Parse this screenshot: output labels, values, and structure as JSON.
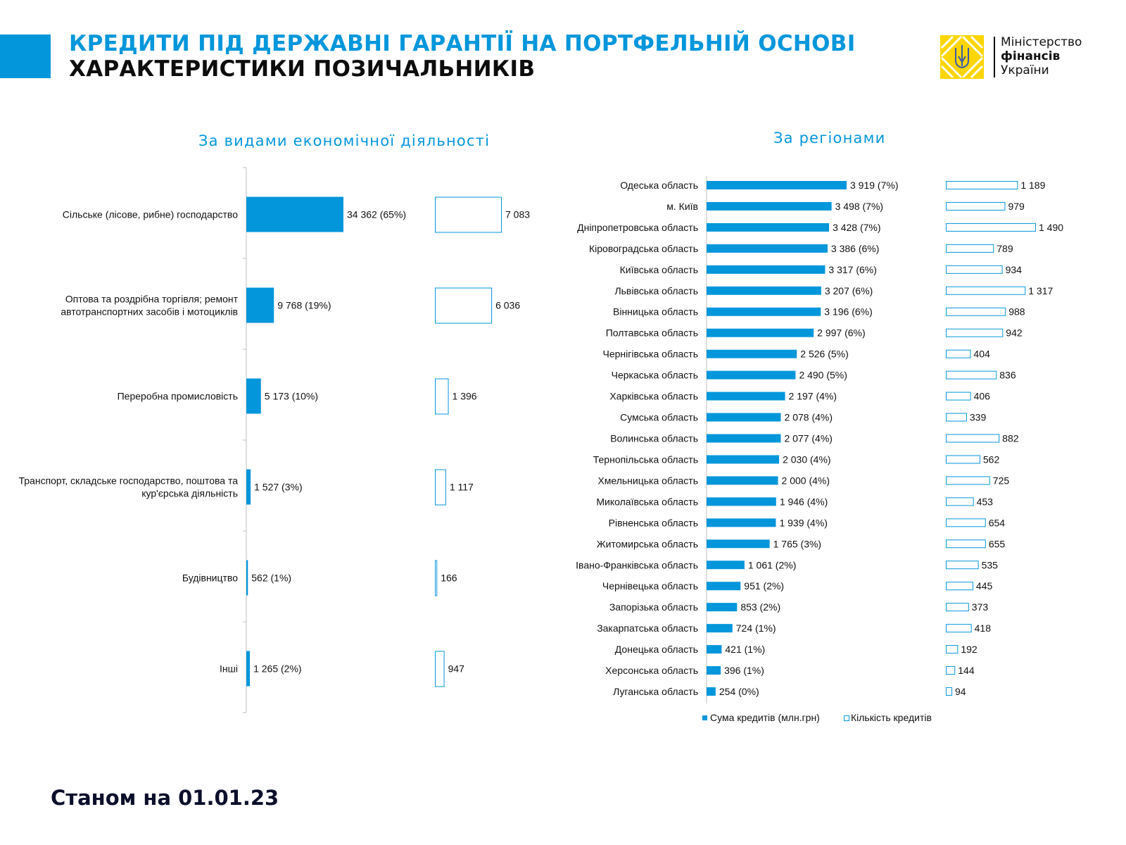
{
  "header": {
    "title_line1": "КРЕДИТИ ПІД ДЕРЖАВНІ ГАРАНТІЇ НА ПОРТФЕЛЬНІЙ ОСНОВІ",
    "title_line2": "ХАРАКТЕРИСТИКИ ПОЗИЧАЛЬНИКІВ",
    "accent_color": "#0396db"
  },
  "logo": {
    "line1": "Міністерство",
    "line2": "фінансів",
    "line3": "України",
    "icon": "trident-emblem-icon",
    "color": "#ffd500"
  },
  "footer": {
    "as_of": "Станом на 01.01.23"
  },
  "chart_data": [
    {
      "type": "bar",
      "orientation": "horizontal",
      "subtitle": "За видами економічної діяльності",
      "categories": [
        "Сільське (лісове, рибне) господарство",
        "Оптова та роздрібна торгівля; ремонт автотранспортних засобів і мотоциклів",
        "Переробна промисловість",
        "Транспорт, складське господарство, поштова та кур'єрська діяльність",
        "Будівництво",
        "Інші"
      ],
      "category_lines": [
        [
          "Сільське (лісове, рибне) господарство"
        ],
        [
          "Оптова та роздрібна торгівля; ремонт",
          "автотранспортних засобів і мотоциклів"
        ],
        [
          "Переробна промисловість"
        ],
        [
          "Транспорт, складське господарство, поштова та",
          "кур'єрська діяльність"
        ],
        [
          "Будівництво"
        ],
        [
          "Інші"
        ]
      ],
      "series": [
        {
          "values": [
            34362,
            9768,
            5173,
            1527,
            562,
            1265
          ],
          "labels": [
            "34 362 (65%)",
            "9 768 (19%)",
            "5 173 (10%)",
            "1 527 (3%)",
            "562 (1%)",
            "1 265 (2%)"
          ],
          "style": "filled",
          "color": "#0396db"
        },
        {
          "values": [
            7083,
            6036,
            1396,
            1117,
            166,
            947
          ],
          "labels": [
            "7 083",
            "6 036",
            "1 396",
            "1 117",
            "166",
            "947"
          ],
          "style": "outline",
          "color": "#0396db"
        }
      ]
    },
    {
      "type": "bar",
      "orientation": "horizontal",
      "subtitle": "За регіонами",
      "categories": [
        "Одеська область",
        "м. Київ",
        "Дніпропетровська область",
        "Кіровоградська область",
        "Київська область",
        "Львівська область",
        "Вінницька область",
        "Полтавська область",
        "Чернігівська область",
        "Черкаська область",
        "Харківська область",
        "Сумська область",
        "Волинська область",
        "Тернопільська область",
        "Хмельницька область",
        "Миколаївська область",
        "Рівненська область",
        "Житомирська область",
        "Івано-Франківська область",
        "Чернівецька область",
        "Запорізька область",
        "Закарпатська область",
        "Донецька область",
        "Херсонська область",
        "Луганська область"
      ],
      "series": [
        {
          "name": "Сума кредитів (млн.грн)",
          "values": [
            3919,
            3498,
            3428,
            3386,
            3317,
            3207,
            3196,
            2997,
            2526,
            2490,
            2197,
            2078,
            2077,
            2030,
            2000,
            1946,
            1939,
            1765,
            1061,
            951,
            853,
            724,
            421,
            396,
            254
          ],
          "labels": [
            "3 919 (7%)",
            "3 498 (7%)",
            "3 428 (7%)",
            "3 386 (6%)",
            "3 317 (6%)",
            "3 207 (6%)",
            "3 196 (6%)",
            "2 997 (6%)",
            "2 526 (5%)",
            "2 490 (5%)",
            "2 197 (4%)",
            "2 078 (4%)",
            "2 077 (4%)",
            "2 030 (4%)",
            "2 000 (4%)",
            "1 946 (4%)",
            "1 939 (4%)",
            "1 765 (3%)",
            "1 061 (2%)",
            "951 (2%)",
            "853 (2%)",
            "724 (1%)",
            "421 (1%)",
            "396 (1%)",
            "254 (0%)"
          ],
          "style": "filled",
          "color": "#0396db"
        },
        {
          "name": "Кількість кредитів",
          "values": [
            1189,
            979,
            1490,
            789,
            934,
            1317,
            988,
            942,
            404,
            836,
            406,
            339,
            882,
            562,
            725,
            453,
            654,
            655,
            535,
            445,
            373,
            418,
            192,
            144,
            94
          ],
          "labels": [
            "1 189",
            "979",
            "1 490",
            "789",
            "934",
            "1 317",
            "988",
            "942",
            "404",
            "836",
            "406",
            "339",
            "882",
            "562",
            "725",
            "453",
            "654",
            "655",
            "535",
            "445",
            "373",
            "418",
            "192",
            "144",
            "94"
          ],
          "style": "outline",
          "color": "#0396db"
        }
      ],
      "legend": "bottom"
    }
  ]
}
